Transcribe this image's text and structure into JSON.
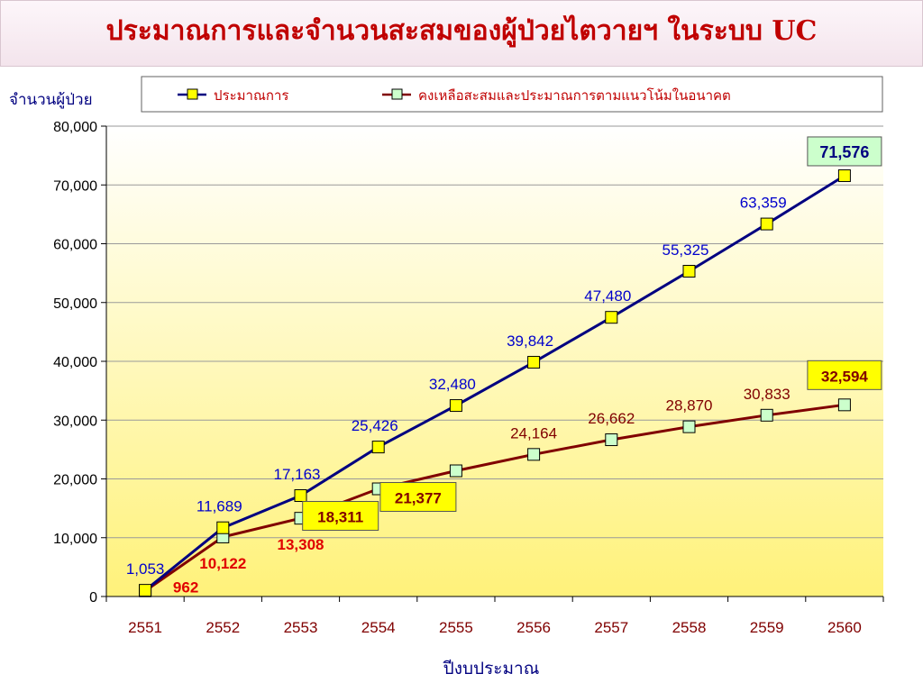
{
  "page": {
    "title": "ประมาณการและจำนวนสะสมของผู้ป่วยไตวายฯ ในระบบ UC"
  },
  "chart_data": {
    "type": "line",
    "title": "ประมาณการและจำนวนสะสมของผู้ป่วยไตวายฯ ในระบบ UC",
    "xlabel": "ปีงบประมาณ",
    "ylabel": "จำนวนผู้ป่วย",
    "categories": [
      "2551",
      "2552",
      "2553",
      "2554",
      "2555",
      "2556",
      "2557",
      "2558",
      "2559",
      "2560"
    ],
    "ylim": [
      0,
      80000
    ],
    "yticks": [
      0,
      10000,
      20000,
      30000,
      40000,
      50000,
      60000,
      70000,
      80000
    ],
    "ytick_labels": [
      "0",
      "10,000",
      "20,000",
      "30,000",
      "40,000",
      "50,000",
      "60,000",
      "70,000",
      "80,000"
    ],
    "grid": true,
    "legend_position": "top",
    "series": [
      {
        "name": "ประมาณการ",
        "color": "#000080",
        "marker_fill": "#ffff00",
        "values": [
          1053,
          11689,
          17163,
          25426,
          32480,
          39842,
          47480,
          55325,
          63359,
          71576
        ],
        "labels": [
          "1,053",
          "11,689",
          "17,163",
          "25,426",
          "32,480",
          "39,842",
          "47,480",
          "55,325",
          "63,359",
          "71,576"
        ]
      },
      {
        "name": "คงเหลือสะสมและประมาณการตามแนวโน้มในอนาคต",
        "color": "#800000",
        "marker_fill": "#ccffcc",
        "values": [
          962,
          10122,
          13308,
          18311,
          21377,
          24164,
          26662,
          28870,
          30833,
          32594
        ],
        "labels": [
          "962",
          "10,122",
          "13,308",
          "18,311",
          "21,377",
          "24,164",
          "26,662",
          "28,870",
          "30,833",
          "32,594"
        ]
      }
    ],
    "colors": {
      "tick_label": "#800000",
      "axis_title": "#000080",
      "legend_text": "#c00000"
    }
  }
}
